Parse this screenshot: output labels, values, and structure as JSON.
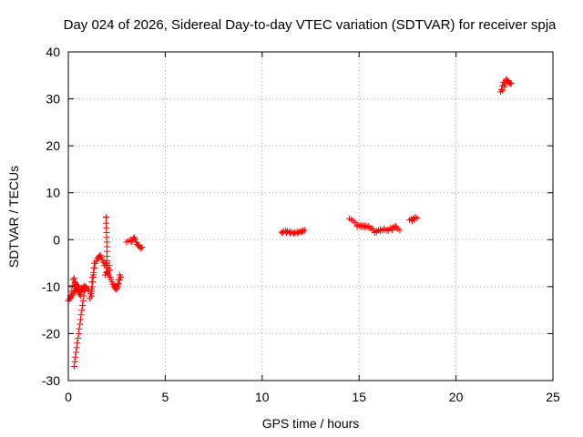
{
  "chart_data": {
    "type": "scatter",
    "title": "Day 024 of 2026, Sidereal Day-to-day VTEC variation (SDTVAR) for receiver spja",
    "xlabel": "GPS time / hours",
    "ylabel": "SDTVAR / TECUs",
    "xlim": [
      0,
      25
    ],
    "ylim": [
      -30,
      40
    ],
    "xticks": [
      0,
      5,
      10,
      15,
      20,
      25
    ],
    "yticks": [
      -30,
      -20,
      -10,
      0,
      10,
      20,
      30,
      40
    ],
    "xtick_labels": [
      "0",
      "5",
      "10",
      "15",
      "20",
      "25"
    ],
    "ytick_labels": [
      "-30",
      "-20",
      "-10",
      "0",
      "10",
      "20",
      "30",
      "40"
    ],
    "grid": true,
    "marker": "plus",
    "color": "#ff0000",
    "series": [
      {
        "points": [
          [
            0.0,
            -13.0
          ],
          [
            0.05,
            -12.6
          ],
          [
            0.1,
            -12.0
          ],
          [
            0.15,
            -11.0
          ],
          [
            0.2,
            -9.8
          ],
          [
            0.25,
            -8.5
          ],
          [
            0.3,
            -8.2
          ],
          [
            0.35,
            -9.0
          ],
          [
            0.4,
            -9.5
          ],
          [
            0.45,
            -10.0
          ],
          [
            0.5,
            -10.3
          ],
          [
            0.55,
            -10.6
          ],
          [
            0.6,
            -10.9
          ],
          [
            0.65,
            -11.2
          ],
          [
            0.7,
            -10.8
          ],
          [
            0.75,
            -10.4
          ],
          [
            0.8,
            -10.0
          ],
          [
            0.85,
            -10.1
          ],
          [
            0.9,
            -10.3
          ],
          [
            0.1,
            -12.5
          ],
          [
            0.15,
            -12.2
          ],
          [
            0.2,
            -11.8
          ],
          [
            0.25,
            -11.5
          ],
          [
            0.3,
            -11.0
          ],
          [
            0.35,
            -10.8
          ],
          [
            0.4,
            -10.5
          ],
          [
            0.45,
            -10.6
          ],
          [
            0.5,
            -10.9
          ],
          [
            0.55,
            -11.3
          ],
          [
            0.6,
            -11.7
          ],
          [
            0.65,
            -12.0
          ],
          [
            0.3,
            -27.0
          ],
          [
            0.33,
            -26.0
          ],
          [
            0.36,
            -25.0
          ],
          [
            0.4,
            -24.0
          ],
          [
            0.43,
            -23.0
          ],
          [
            0.46,
            -22.0
          ],
          [
            0.5,
            -21.0
          ],
          [
            0.53,
            -20.0
          ],
          [
            0.56,
            -19.0
          ],
          [
            0.6,
            -18.0
          ],
          [
            0.63,
            -17.0
          ],
          [
            0.66,
            -16.0
          ],
          [
            0.7,
            -15.0
          ],
          [
            0.73,
            -14.0
          ],
          [
            0.76,
            -13.0
          ],
          [
            0.8,
            -12.0
          ],
          [
            0.83,
            -11.0
          ],
          [
            0.86,
            -10.5
          ],
          [
            0.3,
            -10.0
          ],
          [
            0.35,
            -9.2
          ],
          [
            0.4,
            -9.6
          ],
          [
            0.5,
            -9.8
          ],
          [
            0.6,
            -10.5
          ],
          [
            0.7,
            -10.2
          ],
          [
            0.8,
            -9.8
          ],
          [
            0.9,
            -10.0
          ],
          [
            1.0,
            -10.5
          ],
          [
            1.05,
            -10.8
          ],
          [
            1.1,
            -12.5
          ],
          [
            1.15,
            -11.5
          ],
          [
            1.2,
            -10.5
          ],
          [
            1.22,
            -9.0
          ],
          [
            1.25,
            -8.0
          ],
          [
            1.3,
            -7.5
          ],
          [
            1.35,
            -6.0
          ],
          [
            1.4,
            -5.0
          ],
          [
            1.45,
            -4.5
          ],
          [
            1.5,
            -4.0
          ],
          [
            1.55,
            -3.8
          ],
          [
            1.6,
            -3.5
          ],
          [
            1.65,
            -3.3
          ],
          [
            1.7,
            -3.8
          ],
          [
            1.75,
            -4.2
          ],
          [
            1.8,
            -4.8
          ],
          [
            1.85,
            -5.5
          ],
          [
            1.9,
            -5.0
          ],
          [
            1.95,
            -5.5
          ],
          [
            2.0,
            -5.0
          ],
          [
            2.05,
            -6.0
          ],
          [
            2.1,
            -5.5
          ],
          [
            2.15,
            -6.5
          ],
          [
            1.9,
            -7.5
          ],
          [
            1.95,
            -7.0
          ],
          [
            2.0,
            -6.8
          ],
          [
            2.05,
            -7.2
          ],
          [
            2.1,
            -7.5
          ],
          [
            2.15,
            -8.0
          ],
          [
            2.2,
            -8.5
          ],
          [
            2.25,
            -9.0
          ],
          [
            2.3,
            -9.5
          ],
          [
            2.35,
            -10.0
          ],
          [
            2.4,
            -10.3
          ],
          [
            2.45,
            -10.6
          ],
          [
            2.5,
            -10.2
          ],
          [
            2.55,
            -9.5
          ],
          [
            2.6,
            -8.5
          ],
          [
            2.65,
            -7.5
          ],
          [
            1.95,
            4.8
          ],
          [
            1.95,
            3.5
          ],
          [
            1.96,
            2.5
          ],
          [
            1.97,
            1.5
          ],
          [
            1.98,
            0.5
          ],
          [
            1.99,
            -0.5
          ],
          [
            2.0,
            -1.5
          ],
          [
            2.0,
            -2.5
          ],
          [
            2.0,
            -3.5
          ],
          [
            2.0,
            -4.5
          ],
          [
            1.2,
            -12.0
          ],
          [
            1.22,
            -11.0
          ],
          [
            1.24,
            -10.0
          ],
          [
            1.26,
            -9.0
          ],
          [
            1.28,
            -8.0
          ],
          [
            1.3,
            -7.0
          ],
          [
            1.32,
            -6.0
          ],
          [
            1.34,
            -5.0
          ],
          [
            2.4,
            -9.8
          ],
          [
            2.45,
            -10.2
          ],
          [
            2.5,
            -10.5
          ],
          [
            2.55,
            -10.0
          ],
          [
            2.6,
            -9.3
          ],
          [
            2.65,
            -8.6
          ],
          [
            2.7,
            -8.0
          ],
          [
            3.0,
            -0.5
          ],
          [
            3.1,
            -0.3
          ],
          [
            3.2,
            0.0
          ],
          [
            3.25,
            -0.5
          ],
          [
            3.3,
            -0.2
          ],
          [
            3.35,
            0.3
          ],
          [
            3.4,
            0.5
          ],
          [
            3.45,
            0.0
          ],
          [
            3.5,
            -0.5
          ],
          [
            3.55,
            -1.0
          ],
          [
            3.6,
            -1.3
          ],
          [
            3.65,
            -1.2
          ],
          [
            3.7,
            -1.6
          ],
          [
            3.75,
            -1.9
          ],
          [
            3.8,
            -1.6
          ],
          [
            11.0,
            1.6
          ],
          [
            11.1,
            1.8
          ],
          [
            11.2,
            1.9
          ],
          [
            11.3,
            1.8
          ],
          [
            11.4,
            1.7
          ],
          [
            11.5,
            1.6
          ],
          [
            11.6,
            1.5
          ],
          [
            11.7,
            1.5
          ],
          [
            11.8,
            1.6
          ],
          [
            11.9,
            1.7
          ],
          [
            12.0,
            1.8
          ],
          [
            12.1,
            1.9
          ],
          [
            12.2,
            2.0
          ],
          [
            11.05,
            1.4
          ],
          [
            11.25,
            1.5
          ],
          [
            11.45,
            1.4
          ],
          [
            11.65,
            1.3
          ],
          [
            11.85,
            1.4
          ],
          [
            12.05,
            1.6
          ],
          [
            14.5,
            4.5
          ],
          [
            14.6,
            4.3
          ],
          [
            14.7,
            4.0
          ],
          [
            14.8,
            3.6
          ],
          [
            14.9,
            3.2
          ],
          [
            15.0,
            3.0
          ],
          [
            15.1,
            2.8
          ],
          [
            15.2,
            2.9
          ],
          [
            15.3,
            3.0
          ],
          [
            15.4,
            2.8
          ],
          [
            15.5,
            2.6
          ],
          [
            15.6,
            2.5
          ],
          [
            15.7,
            2.0
          ],
          [
            15.8,
            1.5
          ],
          [
            15.9,
            1.6
          ],
          [
            16.0,
            2.0
          ],
          [
            16.1,
            2.2
          ],
          [
            16.2,
            2.0
          ],
          [
            16.3,
            2.1
          ],
          [
            16.4,
            2.0
          ],
          [
            16.5,
            2.2
          ],
          [
            16.6,
            2.4
          ],
          [
            16.7,
            2.5
          ],
          [
            16.8,
            2.7
          ],
          [
            16.9,
            2.6
          ],
          [
            17.0,
            2.3
          ],
          [
            17.1,
            2.0
          ],
          [
            14.9,
            2.8
          ],
          [
            15.1,
            3.1
          ],
          [
            15.3,
            2.7
          ],
          [
            15.5,
            2.9
          ],
          [
            15.7,
            2.3
          ],
          [
            15.9,
            1.8
          ],
          [
            16.1,
            1.9
          ],
          [
            16.3,
            2.4
          ],
          [
            16.5,
            1.9
          ],
          [
            16.7,
            2.1
          ],
          [
            16.9,
            2.9
          ],
          [
            17.6,
            4.2
          ],
          [
            17.7,
            4.4
          ],
          [
            17.8,
            4.6
          ],
          [
            17.9,
            4.8
          ],
          [
            18.0,
            4.6
          ],
          [
            17.75,
            4.0
          ],
          [
            17.85,
            4.3
          ],
          [
            22.3,
            31.5
          ],
          [
            22.35,
            32.0
          ],
          [
            22.4,
            32.8
          ],
          [
            22.45,
            33.5
          ],
          [
            22.5,
            33.0
          ],
          [
            22.55,
            33.8
          ],
          [
            22.6,
            34.2
          ],
          [
            22.65,
            33.9
          ],
          [
            22.7,
            33.6
          ],
          [
            22.75,
            33.4
          ],
          [
            22.8,
            33.2
          ],
          [
            22.85,
            33.3
          ],
          [
            22.4,
            31.8
          ],
          [
            22.5,
            32.5
          ]
        ]
      }
    ]
  }
}
